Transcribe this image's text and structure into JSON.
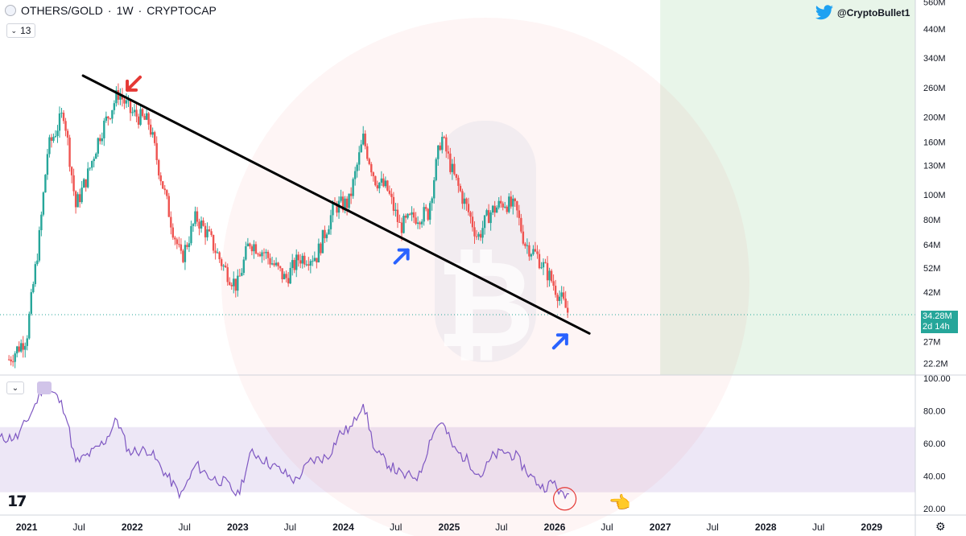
{
  "header": {
    "symbol": "OTHERS/GOLD",
    "interval": "1W",
    "exchange": "CRYPTOCAP",
    "separator": "·",
    "interval_badge": "13"
  },
  "watermark": {
    "handle": "@CryptoBullet1",
    "icon": "twitter-bird-icon"
  },
  "price_label": {
    "value": "34.28M",
    "countdown": "2d 14h"
  },
  "colors": {
    "up": "#26a69a",
    "down": "#ef5350",
    "rsi_line": "#7e57c2",
    "rsi_band": "#ede7f6",
    "forecast_zone": "#e8f5e9",
    "trendline": "#000000",
    "arrow_red": "#e53935",
    "arrow_blue": "#2962ff"
  },
  "chart_data": [
    {
      "type": "candlestick",
      "title": "OTHERS/GOLD · 1W · CRYPTOCAP",
      "yscale": "log",
      "ylim": [
        20000000,
        570000000
      ],
      "y_ticks": [
        "560M",
        "440M",
        "340M",
        "260M",
        "200M",
        "160M",
        "130M",
        "100M",
        "80M",
        "64M",
        "52M",
        "42M",
        "27M",
        "22.2M"
      ],
      "x_ticks": [
        "2021",
        "Jul",
        "2022",
        "Jul",
        "2023",
        "Jul",
        "2024",
        "Jul",
        "2025",
        "Jul",
        "2026",
        "Jul",
        "2027",
        "Jul",
        "2028",
        "Jul",
        "2029"
      ],
      "xlim": [
        "2020-10-01",
        "2029-06-01"
      ],
      "close_path": [
        [
          "2020-11-01",
          23000000
        ],
        [
          "2021-01-01",
          28000000
        ],
        [
          "2021-02-15",
          70000000
        ],
        [
          "2021-03-15",
          150000000
        ],
        [
          "2021-05-10",
          210000000
        ],
        [
          "2021-06-20",
          90000000
        ],
        [
          "2021-08-01",
          120000000
        ],
        [
          "2021-09-10",
          170000000
        ],
        [
          "2021-11-15",
          250000000
        ],
        [
          "2021-12-25",
          210000000
        ],
        [
          "2022-03-01",
          190000000
        ],
        [
          "2022-04-01",
          130000000
        ],
        [
          "2022-05-20",
          75000000
        ],
        [
          "2022-06-20",
          56000000
        ],
        [
          "2022-08-10",
          82000000
        ],
        [
          "2022-09-20",
          70000000
        ],
        [
          "2022-11-15",
          52000000
        ],
        [
          "2022-12-30",
          44000000
        ],
        [
          "2023-02-10",
          66000000
        ],
        [
          "2023-04-01",
          60000000
        ],
        [
          "2023-06-15",
          47000000
        ],
        [
          "2023-08-01",
          57000000
        ],
        [
          "2023-10-01",
          58000000
        ],
        [
          "2023-12-01",
          90000000
        ],
        [
          "2024-01-20",
          93000000
        ],
        [
          "2024-03-10",
          165000000
        ],
        [
          "2024-04-20",
          115000000
        ],
        [
          "2024-06-01",
          105000000
        ],
        [
          "2024-07-15",
          75000000
        ],
        [
          "2024-09-01",
          82000000
        ],
        [
          "2024-10-20",
          85000000
        ],
        [
          "2024-12-05",
          170000000
        ],
        [
          "2025-01-15",
          120000000
        ],
        [
          "2025-03-10",
          85000000
        ],
        [
          "2025-04-10",
          68000000
        ],
        [
          "2025-05-20",
          85000000
        ],
        [
          "2025-07-10",
          94000000
        ],
        [
          "2025-08-20",
          88000000
        ],
        [
          "2025-09-20",
          65000000
        ],
        [
          "2025-11-01",
          58000000
        ],
        [
          "2025-12-15",
          48000000
        ],
        [
          "2026-01-20",
          40000000
        ],
        [
          "2026-02-20",
          34280000
        ]
      ],
      "trendline": [
        [
          "2021-07-15",
          290000000
        ],
        [
          "2026-05-01",
          29000000
        ]
      ],
      "annotations": [
        {
          "kind": "arrow",
          "color": "red",
          "date": "2021-12-15",
          "value": 255000000,
          "direction": "down-left"
        },
        {
          "kind": "arrow",
          "color": "blue",
          "date": "2024-07-20",
          "value": 62000000,
          "direction": "up-right"
        },
        {
          "kind": "arrow",
          "color": "blue",
          "date": "2026-01-20",
          "value": 29000000,
          "direction": "up-right"
        }
      ],
      "forecast_zone_start": "2027-01-01"
    },
    {
      "type": "line",
      "title": "RSI",
      "ylim": [
        16,
        102
      ],
      "y_ticks": [
        "100.00",
        "80.00",
        "60.00",
        "40.00",
        "20.00"
      ],
      "band": [
        30,
        70
      ],
      "series": [
        {
          "values": [
            [
              "2020-10-01",
              63
            ],
            [
              "2020-12-01",
              64
            ],
            [
              "2021-01-15",
              78
            ],
            [
              "2021-03-01",
              95
            ],
            [
              "2021-04-10",
              90
            ],
            [
              "2021-05-15",
              80
            ],
            [
              "2021-06-20",
              48
            ],
            [
              "2021-08-20",
              55
            ],
            [
              "2021-10-01",
              62
            ],
            [
              "2021-11-10",
              75
            ],
            [
              "2021-12-20",
              55
            ],
            [
              "2022-03-01",
              56
            ],
            [
              "2022-04-20",
              43
            ],
            [
              "2022-06-20",
              28
            ],
            [
              "2022-08-10",
              47
            ],
            [
              "2022-09-30",
              39
            ],
            [
              "2022-11-20",
              36
            ],
            [
              "2023-01-01",
              28
            ],
            [
              "2023-02-20",
              55
            ],
            [
              "2023-04-10",
              49
            ],
            [
              "2023-06-01",
              43
            ],
            [
              "2023-07-20",
              37
            ],
            [
              "2023-09-10",
              49
            ],
            [
              "2023-11-10",
              52
            ],
            [
              "2023-12-20",
              66
            ],
            [
              "2024-02-01",
              70
            ],
            [
              "2024-03-10",
              86
            ],
            [
              "2024-04-20",
              55
            ],
            [
              "2024-06-01",
              48
            ],
            [
              "2024-07-25",
              40
            ],
            [
              "2024-09-20",
              40
            ],
            [
              "2024-11-01",
              65
            ],
            [
              "2024-12-05",
              74
            ],
            [
              "2025-01-20",
              56
            ],
            [
              "2025-03-10",
              49
            ],
            [
              "2025-04-20",
              40
            ],
            [
              "2025-06-01",
              52
            ],
            [
              "2025-07-10",
              55
            ],
            [
              "2025-08-20",
              52
            ],
            [
              "2025-10-10",
              40
            ],
            [
              "2025-11-20",
              33
            ],
            [
              "2026-01-01",
              36
            ],
            [
              "2026-01-30",
              27
            ],
            [
              "2026-02-20",
              29
            ]
          ]
        }
      ],
      "highlight_circle": {
        "date": "2026-02-05",
        "value": 26
      }
    }
  ]
}
